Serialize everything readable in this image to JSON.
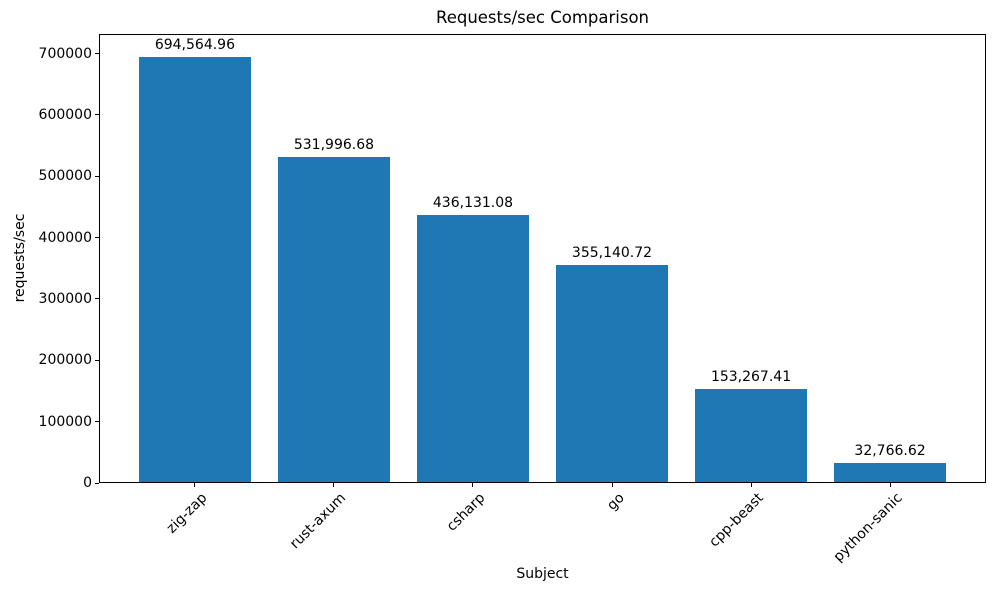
{
  "figure": {
    "background": "#ffffff"
  },
  "chart_data": {
    "type": "bar",
    "title": "Requests/sec Comparison",
    "xlabel": "Subject",
    "ylabel": "requests/sec",
    "categories": [
      "zig-zap",
      "rust-axum",
      "csharp",
      "go",
      "cpp-beast",
      "python-sanic"
    ],
    "values": [
      694564.96,
      531996.68,
      436131.08,
      355140.72,
      153267.41,
      32766.62
    ],
    "bar_labels": [
      "694,564.96",
      "531,996.68",
      "436,131.08",
      "355,140.72",
      "153,267.41",
      "32,766.62"
    ],
    "y_ticks": [
      0,
      100000,
      200000,
      300000,
      400000,
      500000,
      600000,
      700000
    ],
    "y_tick_labels": [
      "0",
      "100000",
      "200000",
      "300000",
      "400000",
      "500000",
      "600000",
      "700000"
    ],
    "ylim": [
      0,
      732000
    ],
    "bar_color": "#1f77b4",
    "axis_color": "#000000",
    "text_color": "#000000",
    "grid": false,
    "legend_position": "none",
    "x_tick_rotation": 45,
    "bar_width_fraction": 0.8
  }
}
